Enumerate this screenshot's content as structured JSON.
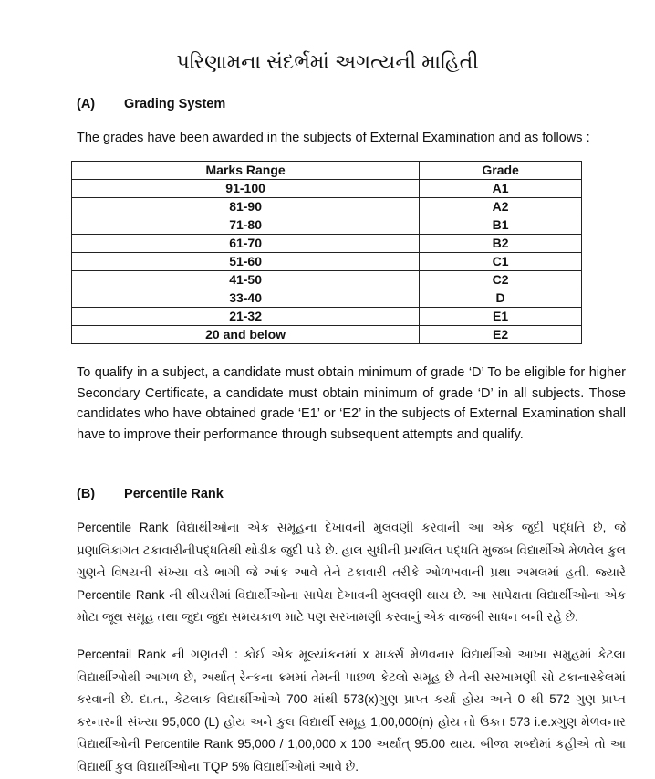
{
  "title": "પરિણામના સંદર્ભમાં અગત્યની માહિતી",
  "section_a": {
    "label": "(A)",
    "heading": "Grading System",
    "intro": "The grades have been awarded in the subjects of External Examination and as follows :",
    "table": {
      "headers": [
        "Marks Range",
        "Grade"
      ],
      "rows": [
        [
          "91-100",
          "A1"
        ],
        [
          "81-90",
          "A2"
        ],
        [
          "71-80",
          "B1"
        ],
        [
          "61-70",
          "B2"
        ],
        [
          "51-60",
          "C1"
        ],
        [
          "41-50",
          "C2"
        ],
        [
          "33-40",
          "D"
        ],
        [
          "21-32",
          "E1"
        ],
        [
          "20 and below",
          "E2"
        ]
      ]
    },
    "note": "To qualify in a subject, a candidate must obtain minimum of grade ‘D’ To be eligible for higher Secondary Certificate, a candidate must obtain minimum of grade ‘D’ in all subjects. Those candidates who have obtained grade ‘E1’ or ‘E2’ in the subjects of External Examination shall have to improve their performance through subsequent attempts and qualify."
  },
  "section_b": {
    "label": "(B)",
    "heading": "Percentile Rank",
    "para1": "Percentile Rank વિદ્યાર્થીઓના એક સમૂહના દેખાવની મુલવણી કરવાની આ એક જુદી પદ્ધતિ છે, જે પ્રણાલિકાગત ટકાવારીનીપદ્ધતિથી થોડીક જુદી પડે છે. હાલ સુધીની પ્રચલિત પદ્ધતિ મુજબ વિદ્યાર્થીએ મેળવેલ કુલ ગુણને વિષયની સંખ્યા વડે ભાગી જે આંક આવે તેને ટકાવારી તરીકે ઓળખવાની પ્રથા અમલમાં હતી. જ્યારે Percentile Rank ની થીયરીમાં વિદ્યાર્થીઓના સાપેક્ષ દેખાવની મુલવણી થાય છે. આ સાપેક્ષતા વિદ્યાર્થીઓના એક મોટા જૂથ સમૂહ તથા જુદા જુદા સમયકાળ માટે પણ સરખામણી કરવાનું એક વાજબી સાધન બની રહે છે.",
    "para2": "Percentail Rank ની ગણતરી : કોઈ એક મૂલ્યાંકનમાં x માર્ક્સ મેળવનાર વિદ્યાર્થીઓ આખા સમુહમાં કેટલા વિદ્યાર્થીઓથી આગળ છે, અર્થાત્ રેન્કના ક્રમમાં તેમની પાછળ કેટલો સમૂહ છે તેની સરખામણી સો ટકાનાસ્કેલમાં કરવાની છે. દા.ત., કેટલાક વિદ્યાર્થીઓએ 700 માંથી 573(x)ગુણ પ્રાપ્ત કર્યા હોય અને 0 થી 572 ગુણ પ્રાપ્ત કરનારની સંખ્યા 95,000 (L) હોય અને કુલ વિદ્યાર્થી સમૂહ 1,00,000(n) હોય તો ઉક્ત 573 i.e.xગુણ મેળવનાર વિદ્યાર્થીઓની Percentile Rank 95,000 / 1,00,000 x 100 અર્થાત્ 95.00 થાય. બીજા શબ્દોમાં કહીએ તો આ વિદ્યાર્થી કુલ વિદ્યાર્થીઓના TQP 5% વિદ્યાર્થીઓમાં આવે છે."
  }
}
